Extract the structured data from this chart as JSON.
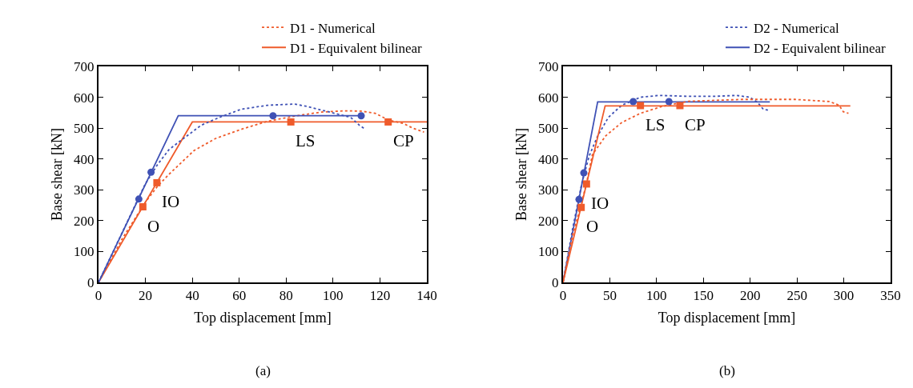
{
  "chart_data": [
    {
      "type": "line",
      "xlabel": "Top displacement [mm]",
      "ylabel": "Base shear [kN]",
      "xlim": [
        0,
        140
      ],
      "xticks": [
        0,
        20,
        40,
        60,
        80,
        100,
        120,
        140
      ],
      "ylim": [
        0,
        700
      ],
      "yticks": [
        0,
        100,
        200,
        300,
        400,
        500,
        600,
        700
      ],
      "grid": false,
      "legend": "top right",
      "series": [
        {
          "name": "D1 - Numerical",
          "line_style": "dotted",
          "color": "#ef5b2b",
          "x": [
            0,
            10,
            20,
            25,
            30,
            40.7,
            49.8,
            60.8,
            72,
            83.5,
            95,
            105,
            112,
            118,
            123.7,
            130,
            134,
            138.8
          ],
          "values": [
            0,
            140,
            260,
            310,
            350,
            427,
            466,
            496,
            522,
            539,
            552,
            556,
            555,
            548,
            526,
            515,
            500,
            487
          ]
        },
        {
          "name": "D1 - Equivalent bilinear",
          "line_style": "solid",
          "color": "#ef5b2b",
          "x": [
            0,
            40,
            140
          ],
          "values": [
            0,
            520,
            520
          ]
        },
        {
          "line_style": "dotted",
          "color": "#3f51b5",
          "x": [
            0,
            10,
            20,
            25,
            30,
            34.6,
            43.7,
            51.6,
            60.8,
            72,
            83.5,
            89.2,
            100.5,
            107.5,
            111.3,
            113.4
          ],
          "values": [
            0,
            160,
            320,
            380,
            430,
            457,
            509,
            535,
            561,
            574,
            578,
            570,
            548,
            535,
            509,
            498
          ]
        },
        {
          "line_style": "solid",
          "color": "#3f51b5",
          "x": [
            0,
            34,
            113
          ],
          "values": [
            0,
            540,
            540
          ]
        },
        {
          "type": "scatter",
          "marker": "circle",
          "color": "#3f51b5",
          "x": [
            17.2,
            22.4,
            74.4,
            112
          ],
          "values": [
            270,
            357,
            540,
            540
          ]
        },
        {
          "type": "scatter",
          "marker": "square",
          "color": "#ef5b2b",
          "x": [
            18.9,
            24.9,
            82,
            123.5
          ],
          "values": [
            245,
            323,
            520,
            520
          ]
        }
      ],
      "annotations": [
        {
          "text": "O",
          "x": 18.9,
          "y": 245
        },
        {
          "text": "IO",
          "x": 24.9,
          "y": 323
        },
        {
          "text": "LS",
          "x": 82,
          "y": 520
        },
        {
          "text": "CP",
          "x": 123.5,
          "y": 520
        },
        "(a)"
      ]
    },
    {
      "type": "line",
      "xlabel": "Top displacement [mm]",
      "ylabel": "Base shear [kN]",
      "xlim": [
        0,
        350
      ],
      "xticks": [
        0,
        50,
        100,
        150,
        200,
        250,
        300,
        350
      ],
      "ylim": [
        0,
        700
      ],
      "yticks": [
        0,
        100,
        200,
        300,
        400,
        500,
        600,
        700
      ],
      "grid": false,
      "legend": "top right",
      "series": [
        {
          "name": "D2 - Numerical",
          "line_style": "dotted",
          "color": "#3f51b5",
          "x": [
            0,
            10,
            20,
            28,
            37.1,
            48.5,
            62.7,
            82.7,
            102.7,
            134,
            162.6,
            185.4,
            199.7,
            208,
            214,
            221
          ],
          "values": [
            0,
            170,
            320,
            410,
            475,
            535,
            574,
            600,
            606,
            603,
            603,
            606,
            600,
            583,
            561,
            557
          ]
        },
        {
          "name": "D2 - Equivalent bilinear",
          "line_style": "solid",
          "color": "#3f51b5",
          "x": [
            0,
            37,
            221
          ],
          "values": [
            0,
            585,
            585
          ]
        },
        {
          "line_style": "dotted",
          "color": "#ef5b2b",
          "x": [
            0,
            10,
            20,
            25,
            31.4,
            45.6,
            62.7,
            82.7,
            105.5,
            134,
            191,
            248,
            285,
            295,
            299.5,
            305
          ],
          "values": [
            0,
            150,
            260,
            320,
            414,
            475,
            518,
            548,
            570,
            587,
            593,
            593,
            586,
            574,
            553,
            548
          ]
        },
        {
          "line_style": "solid",
          "color": "#ef5b2b",
          "x": [
            0,
            45,
            307
          ],
          "values": [
            0,
            572,
            572
          ]
        },
        {
          "type": "scatter",
          "marker": "circle",
          "color": "#3f51b5",
          "x": [
            17.1,
            22.2,
            75,
            113.2
          ],
          "values": [
            269,
            355,
            586,
            586
          ]
        },
        {
          "type": "scatter",
          "marker": "square",
          "color": "#ef5b2b",
          "x": [
            19.4,
            25.1,
            82.7,
            124.9
          ],
          "values": [
            243,
            319,
            573,
            573
          ]
        }
      ],
      "annotations": [
        {
          "text": "O",
          "x": 19.4,
          "y": 243
        },
        {
          "text": "IO",
          "x": 25.1,
          "y": 319
        },
        {
          "text": "LS",
          "x": 82.7,
          "y": 573
        },
        {
          "text": "CP",
          "x": 124.9,
          "y": 573
        },
        "(b)"
      ]
    }
  ]
}
